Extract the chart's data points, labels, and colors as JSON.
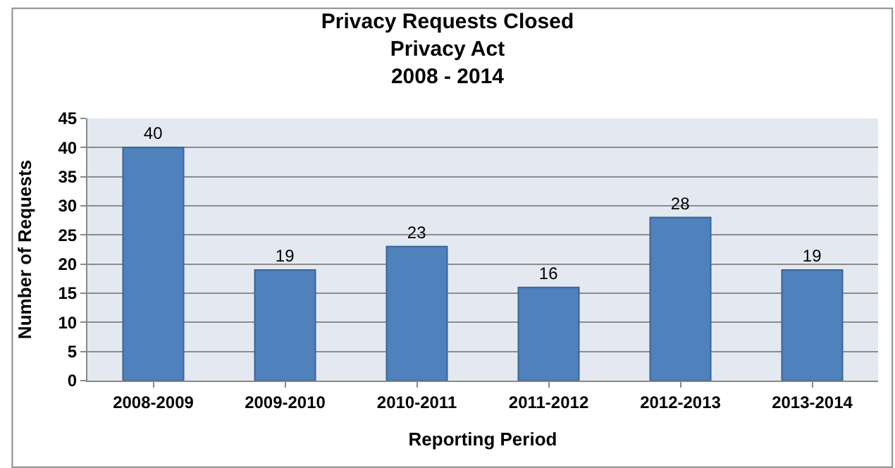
{
  "chart_data": {
    "type": "bar",
    "title": "Privacy Requests Closed\nPrivacy Act\n2008 - 2014",
    "xlabel": "Reporting Period",
    "ylabel": "Number of Requests",
    "categories": [
      "2008-2009",
      "2009-2010",
      "2010-2011",
      "2011-2012",
      "2012-2013",
      "2013-2014"
    ],
    "values": [
      40,
      19,
      23,
      16,
      28,
      19
    ],
    "color": "#4f81bd",
    "ylim": [
      0,
      45
    ],
    "yticks": [
      0,
      5,
      10,
      15,
      20,
      25,
      30,
      35,
      40,
      45
    ],
    "grid": "y",
    "data_labels": true,
    "legend": false
  }
}
